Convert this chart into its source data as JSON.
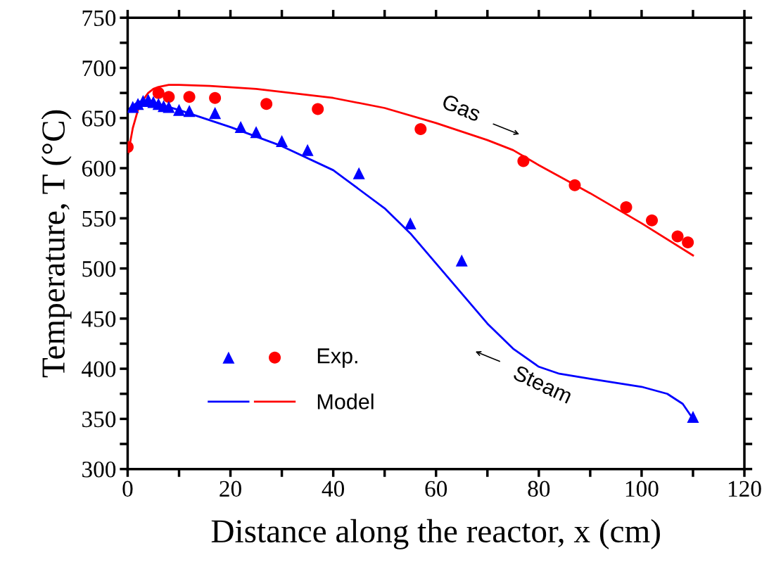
{
  "chart_data": {
    "type": "scatter",
    "xlabel": "Distance along the reactor, x (cm)",
    "ylabel": "Temperature, T (°C)",
    "xlim": [
      0,
      120
    ],
    "ylim": [
      300,
      750
    ],
    "xticks": [
      0,
      {
        "value": 10,
        "label": null
      },
      20,
      {
        "value": 30,
        "label": null
      },
      40,
      {
        "value": 50,
        "label": null
      },
      60,
      {
        "value": 70,
        "label": null
      },
      80,
      {
        "value": 90,
        "label": null
      },
      100,
      {
        "value": 110,
        "label": null
      },
      120
    ],
    "yticks": [
      300,
      {
        "value": 325,
        "label": null
      },
      350,
      {
        "value": 375,
        "label": null
      },
      400,
      {
        "value": 425,
        "label": null
      },
      450,
      {
        "value": 475,
        "label": null
      },
      500,
      {
        "value": 525,
        "label": null
      },
      550,
      {
        "value": 575,
        "label": null
      },
      600,
      {
        "value": 625,
        "label": null
      },
      650,
      {
        "value": 675,
        "label": null
      },
      700,
      {
        "value": 725,
        "label": null
      },
      750
    ],
    "grid": false,
    "legend": "bottom left",
    "series": [
      {
        "name": "Exp.",
        "marker": "circle",
        "color": "#ff0000",
        "x": [
          0,
          6,
          8,
          12,
          17,
          27,
          37,
          57,
          77,
          87,
          97,
          102,
          107,
          109
        ],
        "values": [
          621,
          675,
          671,
          671,
          670,
          664,
          659,
          639,
          607,
          583,
          561,
          548,
          532,
          526
        ]
      },
      {
        "marker": "triangle",
        "color": "#0000ff",
        "x": [
          1,
          2,
          3,
          4,
          5,
          6,
          7,
          8,
          10,
          12,
          17,
          22,
          25,
          30,
          35,
          45,
          55,
          65,
          110
        ],
        "values": [
          661,
          664,
          667,
          668,
          666,
          664,
          662,
          661,
          658,
          657,
          655,
          641,
          636,
          627,
          618,
          595,
          545,
          508,
          352
        ]
      },
      {
        "name": "Model",
        "type": "line",
        "marker": "none",
        "line_style": "solid",
        "color": "#ff0000",
        "x": [
          0,
          1,
          2,
          3,
          4,
          5,
          6,
          8,
          10,
          16,
          25,
          40,
          50,
          60,
          70,
          75,
          80,
          90,
          100,
          110
        ],
        "values": [
          612,
          640,
          658,
          668,
          675,
          679,
          681,
          683,
          683,
          682,
          679,
          670,
          660,
          645,
          628,
          618,
          603,
          575,
          545,
          513
        ]
      },
      {
        "type": "line",
        "marker": "none",
        "line_style": "solid",
        "color": "#0000ff",
        "x": [
          0,
          1,
          2,
          4,
          6,
          10,
          20,
          30,
          40,
          50,
          55,
          60,
          65,
          70,
          75,
          80,
          84,
          90,
          100,
          105,
          108,
          110
        ],
        "values": [
          658,
          662,
          666,
          668,
          664,
          658,
          641,
          622,
          598,
          560,
          535,
          505,
          475,
          445,
          420,
          402,
          395,
          390,
          382,
          375,
          365,
          350
        ]
      }
    ],
    "annotations": [
      "Gas",
      "Steam"
    ]
  }
}
